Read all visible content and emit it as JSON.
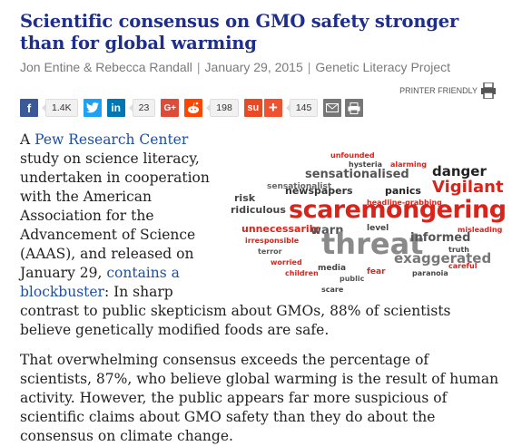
{
  "title": "Scientific consensus on GMO safety stronger than for global warming",
  "byline": {
    "authors": "Jon Entine & Rebecca Randall",
    "date": "January 29, 2015",
    "site": "Genetic Literacy Project"
  },
  "printer_label": "PRINTER FRIENDLY",
  "share": {
    "facebook_count": "1.4K",
    "linkedin_count": "23",
    "reddit_count": "198",
    "plus_count": "145"
  },
  "paragraph1": {
    "lead": "A ",
    "link1": "Pew Research Center",
    "mid": " study on science literacy, undertaken in cooperation with the American Association for the Advancement of Science (AAAS), and released on January 29, ",
    "link2": "contains a blockbuster",
    "tail1": ": In sharp",
    "tail2": "contrast to public skepticism about GMOs, 88% of scientists believe genetically modified foods are safe."
  },
  "paragraph2": "That overwhelming consensus exceeds the percentage of scientists, 87%, who believe global warming is the result of human activity. However, the public appears far more suspicious of scientific claims about GMO safety than they do about the consensus on climate change.",
  "cloud_words": {
    "main": "scaremongering",
    "threat": "threat",
    "danger": "danger",
    "vigilant": "Vigilant",
    "sensationalised": "sensationalised",
    "exaggerated": "exaggerated",
    "unnecessarily": "unnecessarily",
    "ridiculous": "ridiculous",
    "newspapers": "newspapers",
    "panics": "panics",
    "warn": "warn",
    "informed": "informed",
    "level": "level",
    "risk": "risk",
    "sensationalist": "sensationalist",
    "irresponsible": "irresponsible",
    "hysteria": "hysteria",
    "headline_grabbing": "headline-grabbing",
    "unfounded": "unfounded",
    "alarming": "alarming",
    "terror": "terror",
    "worried": "worried",
    "media": "media",
    "fear": "fear",
    "truth": "truth",
    "children": "children",
    "paranoia": "paranoia",
    "public": "public",
    "misleading": "misleading",
    "scare": "scare",
    "careful": "careful"
  }
}
